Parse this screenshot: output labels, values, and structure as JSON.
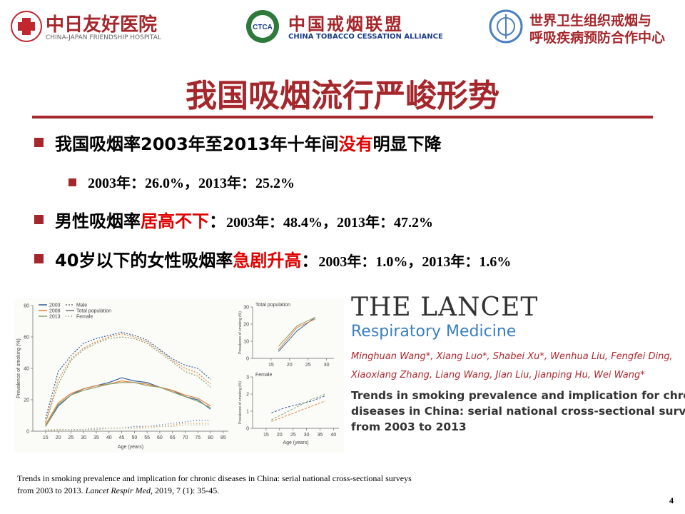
{
  "header": {
    "hospital": {
      "name": "中日友好医院",
      "english": "CHINA-JAPAN FRIENDSHIP HOSPITAL"
    },
    "alliance": {
      "badge": "CTCA",
      "name": "中国戒烟联盟",
      "english": "CHINA TOBACCO CESSATION ALLIANCE"
    },
    "who": {
      "line1": "世界卫生组织戒烟与",
      "line2": "呼吸疾病预防合作中心"
    }
  },
  "title": "我国吸烟流行严峻形势",
  "bullets": [
    {
      "parts": [
        {
          "text": "我国吸烟率2003年至2013年十年间",
          "color": "#000000"
        },
        {
          "text": "没有",
          "color": "#e00000"
        },
        {
          "text": "明显下降",
          "color": "#000000"
        }
      ],
      "sub": "2003年：26.0%，2013年：25.2%"
    },
    {
      "parts": [
        {
          "text": "男性吸烟率",
          "color": "#000000"
        },
        {
          "text": "居高不下",
          "color": "#e00000"
        },
        {
          "text": "：",
          "color": "#000000"
        }
      ],
      "detail": "2003年：48.4%，2013年：47.2%"
    },
    {
      "parts": [
        {
          "text": "40岁以下的女性吸烟率",
          "color": "#000000"
        },
        {
          "text": "急剧升高",
          "color": "#e00000"
        },
        {
          "text": "：",
          "color": "#000000"
        }
      ],
      "detail": "2003年：1.0%，2013年：1.6%"
    }
  ],
  "figure": {
    "main": {
      "xlabel": "Age (years)",
      "ylabel": "Prevalence of smoking (%)",
      "xlim": [
        10,
        87
      ],
      "xticks": [
        15,
        20,
        25,
        30,
        35,
        40,
        45,
        50,
        55,
        60,
        65,
        70,
        75,
        80,
        85
      ],
      "ylim": [
        0,
        80
      ],
      "yticks": [
        0,
        20,
        40,
        60,
        80
      ],
      "x": [
        15,
        20,
        25,
        30,
        35,
        40,
        45,
        50,
        55,
        60,
        65,
        70,
        75,
        80
      ],
      "years": [
        {
          "name": "2003",
          "color": "#2e5e9e"
        },
        {
          "name": "2008",
          "color": "#e0823a"
        },
        {
          "name": "2013",
          "color": "#8aa06a"
        }
      ],
      "groups": [
        {
          "name": "Male",
          "dash": "2 2",
          "lines": [
            [
              8,
              38,
              48,
              56,
              59,
              61,
              63,
              61,
              58,
              52,
              46,
              42,
              40,
              33
            ],
            [
              6,
              33,
              46,
              53,
              57,
              60,
              62,
              60,
              57,
              51,
              45,
              40,
              37,
              30
            ],
            [
              5,
              30,
              45,
              52,
              56,
              59,
              60,
              59,
              56,
              50,
              44,
              38,
              35,
              28
            ]
          ]
        },
        {
          "name": "Total population",
          "dash": "none",
          "lines": [
            [
              3,
              16,
              23,
              27,
              29,
              31,
              34,
              32,
              31,
              28,
              26,
              22,
              20,
              14
            ],
            [
              4,
              18,
              24,
              27,
              29,
              30,
              32,
              31,
              30,
              28,
              26,
              23,
              21,
              16
            ],
            [
              3,
              17,
              23,
              26,
              28,
              30,
              31,
              31,
              29,
              28,
              25,
              22,
              19,
              15
            ]
          ]
        },
        {
          "name": "Female",
          "dash": "1 3",
          "lines": [
            [
              0,
              1,
              1,
              1,
              2,
              2,
              2,
              3,
              3,
              4,
              5,
              6,
              7,
              7
            ],
            [
              0,
              1,
              1,
              1,
              1,
              2,
              2,
              2,
              3,
              3,
              4,
              5,
              5,
              5
            ],
            [
              1,
              1,
              1,
              1,
              1,
              2,
              2,
              2,
              2,
              3,
              3,
              4,
              4,
              4
            ]
          ]
        }
      ]
    },
    "panels": [
      {
        "title": "Total population",
        "dash": "none",
        "xlim": [
          10,
          32
        ],
        "xticks": [
          15,
          20,
          25,
          30
        ],
        "ylim": [
          0,
          30
        ],
        "yticks": [
          0,
          10,
          20,
          30
        ],
        "x": [
          17,
          22,
          27
        ],
        "lines": [
          [
            4,
            16,
            24
          ],
          [
            5,
            18,
            23
          ],
          [
            7,
            19,
            24
          ]
        ]
      },
      {
        "title": "Female",
        "dash": "3 2",
        "xlabel": "Age (years)",
        "xlim": [
          10,
          42
        ],
        "xticks": [
          15,
          20,
          25,
          30,
          35,
          40
        ],
        "ylim": [
          0,
          3
        ],
        "yticks": [
          0,
          1,
          2,
          3
        ],
        "x": [
          17,
          22,
          27,
          32,
          37
        ],
        "lines": [
          [
            0.9,
            1.2,
            1.4,
            1.6,
            1.9
          ],
          [
            0.4,
            0.7,
            1.0,
            1.3,
            1.6
          ],
          [
            0.5,
            0.9,
            1.3,
            1.7,
            2.0
          ]
        ]
      }
    ]
  },
  "article": {
    "journal": "THE LANCET",
    "subjournal": "Respiratory Medicine",
    "authors": [
      "Minghuan Wang*, Xiang Luo*, Shabei Xu*, Wenhua Liu, Fengfei Ding,",
      "Xiaoxiang Zhang, Liang Wang, Jian Liu, Jianping Hu, Wei Wang*"
    ],
    "title": [
      "Trends in smoking prevalence and implication for chronic",
      "diseases in China: serial national cross-sectional surveys",
      "from 2003 to 2013"
    ]
  },
  "citation": {
    "line1": "Trends in smoking prevalence and implication  for chronic diseases in China: serial national cross-sectional surveys",
    "line2_start": "from 2003 to 2013. ",
    "journal": "Lancet Respir Med",
    "line2_end": ", 2019, 7 (1): 35-45."
  },
  "page_number": "4"
}
